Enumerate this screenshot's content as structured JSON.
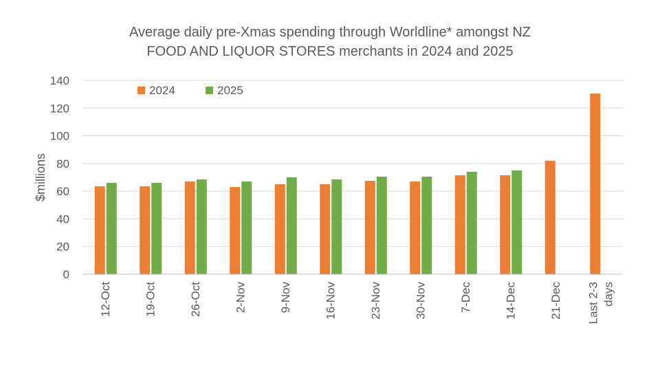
{
  "chart_data": {
    "type": "bar",
    "title_lines": [
      "Average daily pre-Xmas spending through Worldline* amongst NZ",
      "FOOD AND LIQUOR STORES merchants in 2024 and 2025"
    ],
    "ylabel": "$millions",
    "xlabel": "",
    "ylim": [
      0,
      140
    ],
    "yticks": [
      0,
      20,
      40,
      60,
      80,
      100,
      120,
      140
    ],
    "grid": true,
    "legend_position": "top-left",
    "categories": [
      "12-Oct",
      "19-Oct",
      "26-Oct",
      "2-Nov",
      "9-Nov",
      "16-Nov",
      "23-Nov",
      "30-Nov",
      "7-Dec",
      "14-Dec",
      "21-Dec",
      "Last 2-3 days"
    ],
    "category_lines": [
      [
        "12-Oct"
      ],
      [
        "19-Oct"
      ],
      [
        "26-Oct"
      ],
      [
        "2-Nov"
      ],
      [
        "9-Nov"
      ],
      [
        "16-Nov"
      ],
      [
        "23-Nov"
      ],
      [
        "30-Nov"
      ],
      [
        "7-Dec"
      ],
      [
        "14-Dec"
      ],
      [
        "21-Dec"
      ],
      [
        "Last 2-3",
        "days"
      ]
    ],
    "series": [
      {
        "name": "2024",
        "color": "#ED7D31",
        "values": [
          63.5,
          63.5,
          67,
          63,
          65,
          65,
          67.5,
          67,
          71.5,
          71.5,
          82,
          130.5
        ]
      },
      {
        "name": "2025",
        "color": "#70AD47",
        "values": [
          66,
          66,
          68.5,
          67,
          70,
          68.5,
          70.5,
          70.5,
          74,
          75,
          null,
          null
        ]
      }
    ]
  }
}
